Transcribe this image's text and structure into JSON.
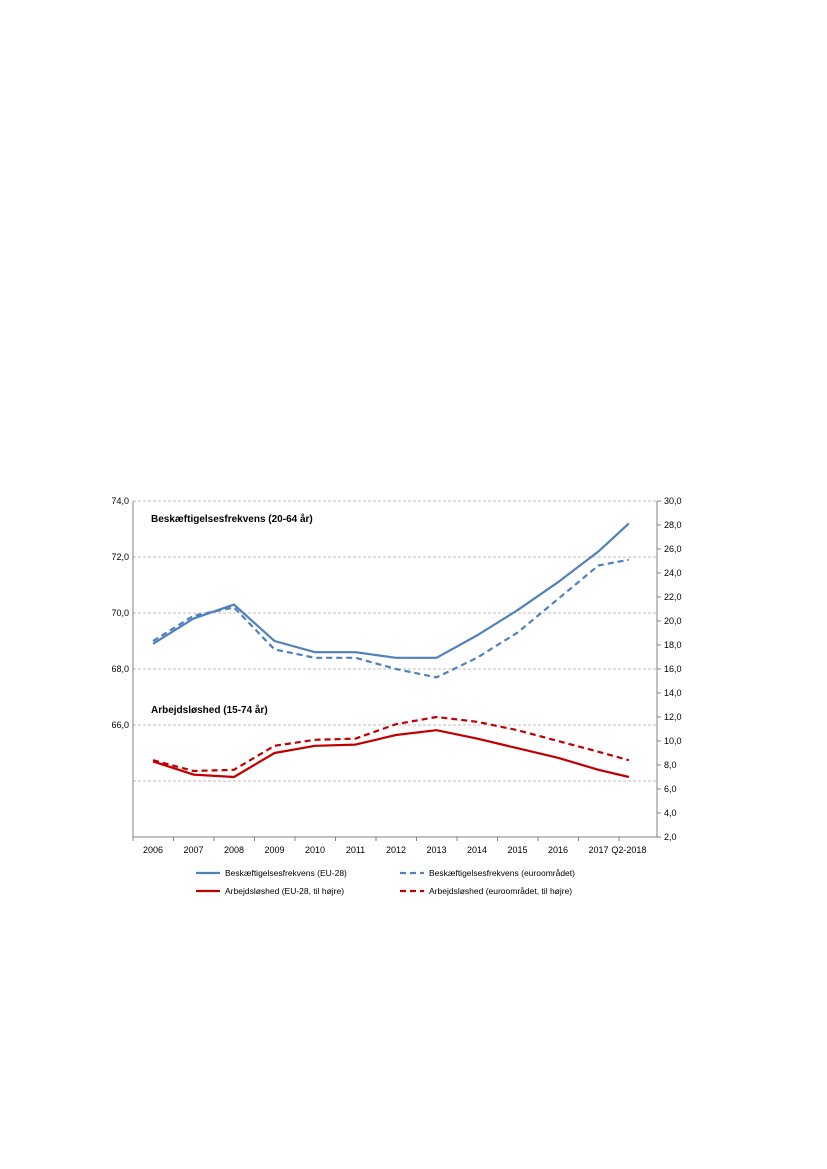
{
  "chart_data": {
    "type": "line",
    "categories": [
      "2006",
      "2007",
      "2008",
      "2009",
      "2010",
      "2011",
      "2012",
      "2013",
      "2014",
      "2015",
      "2016",
      "2017",
      "Q2-2018"
    ],
    "x_positions": [
      0,
      1,
      2,
      3,
      4,
      5,
      6,
      7,
      8,
      9,
      10,
      11,
      11.75
    ],
    "left_axis": {
      "ylim": [
        62.0,
        74.0
      ],
      "ticks": [
        74.0,
        72.0,
        70.0,
        68.0,
        66.0
      ],
      "tick_labels": [
        "74,0",
        "72,0",
        "70,0",
        "68,0",
        "66,0"
      ],
      "gridlines": [
        74.0,
        72.0,
        70.0,
        68.0,
        66.0,
        64.0,
        62.0
      ]
    },
    "right_axis": {
      "ylim": [
        2.0,
        30.0
      ],
      "ticks": [
        30.0,
        28.0,
        26.0,
        24.0,
        22.0,
        20.0,
        18.0,
        16.0,
        14.0,
        12.0,
        10.0,
        8.0,
        6.0,
        4.0,
        2.0
      ],
      "tick_labels": [
        "30,0",
        "28,0",
        "26,0",
        "24,0",
        "22,0",
        "20,0",
        "18,0",
        "16,0",
        "14,0",
        "12,0",
        "10,0",
        "8,0",
        "6,0",
        "4,0",
        "2,0"
      ]
    },
    "annotations": [
      "Beskæftigelsesfrekvens (20-64 år)",
      "Arbejdsløshed (15-74 år)"
    ],
    "series": [
      {
        "name": "Beskæftigelsesfrekvens (EU-28)",
        "axis": "left",
        "color": "#4f81bd",
        "dash": "solid",
        "values": [
          68.9,
          69.8,
          70.3,
          69.0,
          68.6,
          68.6,
          68.4,
          68.4,
          69.2,
          70.1,
          71.1,
          72.2,
          73.2
        ]
      },
      {
        "name": "Beskæftigelsesfrekvens (euroområdet)",
        "axis": "left",
        "color": "#4f81bd",
        "dash": "dashed",
        "values": [
          69.0,
          69.9,
          70.2,
          68.7,
          68.4,
          68.4,
          68.0,
          67.7,
          68.4,
          69.3,
          70.5,
          71.7,
          71.9
        ]
      },
      {
        "name": "Arbejdsløshed (EU-28, til højre)",
        "axis": "right",
        "color": "#c00000",
        "dash": "solid",
        "values": [
          8.3,
          7.2,
          7.0,
          9.0,
          9.6,
          9.7,
          10.5,
          10.9,
          10.2,
          9.4,
          8.6,
          7.6,
          7.0
        ]
      },
      {
        "name": "Arbejdsløshed (euroområdet, til højre)",
        "axis": "right",
        "color": "#c00000",
        "dash": "dashed",
        "values": [
          8.4,
          7.5,
          7.6,
          9.6,
          10.1,
          10.2,
          11.4,
          12.0,
          11.6,
          10.9,
          10.0,
          9.1,
          8.4
        ]
      }
    ],
    "legend_position": "bottom",
    "grid": true
  }
}
